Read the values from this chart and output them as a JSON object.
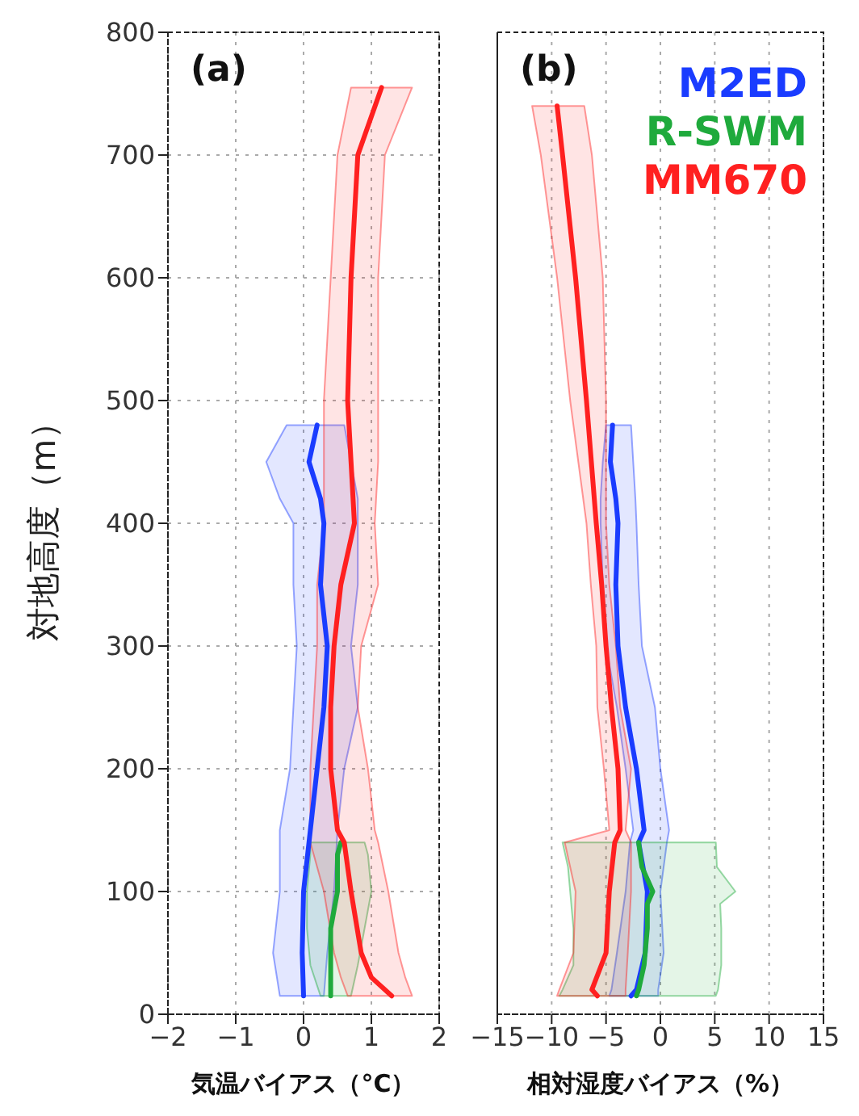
{
  "chart_data": [
    {
      "type": "line",
      "orientation": "horizontal",
      "annotations": [
        "(a)"
      ],
      "xlabel": "気温バイアス（°C）",
      "ylabel": "対地高度（m）",
      "xlim": [
        -2,
        2
      ],
      "xticks": [
        -2,
        -1,
        0,
        1,
        2
      ],
      "ylim": [
        0,
        800
      ],
      "yticks": [
        0,
        100,
        200,
        300,
        400,
        500,
        600,
        700,
        800
      ],
      "grid": true,
      "series": [
        {
          "color": "#1a3cff",
          "x": [
            15,
            50,
            100,
            150,
            200,
            250,
            300,
            350,
            400,
            420,
            450,
            480
          ],
          "values": [
            0,
            -0.02,
            0,
            0.1,
            0.2,
            0.3,
            0.35,
            0.25,
            0.3,
            0.25,
            0.08,
            0.2
          ],
          "lower": [
            -0.35,
            -0.45,
            -0.35,
            -0.35,
            -0.2,
            -0.15,
            -0.1,
            -0.15,
            -0.15,
            -0.35,
            -0.55,
            -0.25
          ],
          "upper": [
            0.3,
            0.35,
            0.45,
            0.5,
            0.6,
            0.8,
            0.7,
            0.8,
            0.8,
            0.8,
            0.7,
            0.6
          ]
        },
        {
          "color": "#1faa3c",
          "x": [
            15,
            40,
            70,
            100,
            130,
            140
          ],
          "values": [
            0.4,
            0.4,
            0.4,
            0.5,
            0.5,
            0.55
          ],
          "lower": [
            0.25,
            0.1,
            0.05,
            0.05,
            0.1,
            0.1
          ],
          "upper": [
            0.7,
            0.8,
            0.9,
            1.0,
            0.95,
            0.9
          ]
        },
        {
          "color": "#ff2020",
          "x": [
            15,
            30,
            50,
            100,
            140,
            150,
            200,
            250,
            300,
            350,
            400,
            450,
            500,
            600,
            700,
            755
          ],
          "values": [
            1.3,
            1.0,
            0.85,
            0.7,
            0.6,
            0.5,
            0.4,
            0.4,
            0.45,
            0.55,
            0.75,
            0.7,
            0.65,
            0.7,
            0.8,
            1.15
          ],
          "lower": [
            0.65,
            0.55,
            0.45,
            0.3,
            0.1,
            0.1,
            0.1,
            0.15,
            0.2,
            0.2,
            0.3,
            0.3,
            0.3,
            0.4,
            0.5,
            0.7
          ],
          "upper": [
            1.6,
            1.5,
            1.4,
            1.25,
            1.1,
            1.05,
            0.95,
            0.8,
            0.85,
            1.1,
            1.05,
            1.1,
            1.1,
            1.1,
            1.2,
            1.6
          ]
        }
      ]
    },
    {
      "type": "line",
      "orientation": "horizontal",
      "annotations": [
        "(b)"
      ],
      "xlabel": "相対湿度バイアス（%）",
      "xlim": [
        -15,
        15
      ],
      "xticks": [
        -15,
        -10,
        -5,
        0,
        5,
        10,
        15
      ],
      "ylim": [
        0,
        800
      ],
      "yticks": [
        0,
        100,
        200,
        300,
        400,
        500,
        600,
        700,
        800
      ],
      "grid": true,
      "tick_labels": "x",
      "legend": "top right",
      "series": [
        {
          "name": "M2ED",
          "color": "#1a3cff",
          "x": [
            15,
            20,
            50,
            100,
            140,
            150,
            200,
            250,
            300,
            350,
            400,
            420,
            450,
            480
          ],
          "values": [
            -2.7,
            -2.2,
            -1.4,
            -1.2,
            -2,
            -1.5,
            -2.2,
            -3.2,
            -3.9,
            -4.1,
            -3.9,
            -4.1,
            -4.6,
            -4.4
          ],
          "lower": [
            -4.7,
            -4.5,
            -4,
            -3.2,
            -2.8,
            -2.5,
            -3.2,
            -4,
            -5,
            -5.3,
            -5.5,
            -5.5,
            -5.3,
            -5
          ],
          "upper": [
            -0.2,
            -0.2,
            0.3,
            0,
            0.6,
            0.8,
            0,
            -0.5,
            -1.7,
            -2,
            -2.2,
            -2.3,
            -2.5,
            -2.7
          ]
        },
        {
          "name": "R-SWM",
          "color": "#1faa3c",
          "x": [
            15,
            20,
            40,
            70,
            90,
            100,
            120,
            140
          ],
          "values": [
            -2.2,
            -2,
            -1.5,
            -1.2,
            -1.2,
            -0.7,
            -1.7,
            -2
          ],
          "lower": [
            -9.3,
            -9,
            -8,
            -8,
            -8.2,
            -8.3,
            -8.5,
            -9
          ],
          "upper": [
            5.1,
            5.3,
            5.6,
            5.6,
            5.5,
            6.9,
            5.2,
            5.1
          ]
        },
        {
          "name": "MM670",
          "color": "#ff2020",
          "x": [
            15,
            20,
            50,
            100,
            140,
            150,
            200,
            250,
            300,
            350,
            400,
            500,
            600,
            700,
            740
          ],
          "values": [
            -5.8,
            -6.3,
            -5,
            -4.7,
            -4.2,
            -3.7,
            -3.9,
            -4.5,
            -5,
            -5.4,
            -5.9,
            -6.8,
            -7.8,
            -9,
            -9.5
          ],
          "lower": [
            -9.5,
            -9.3,
            -8,
            -7.8,
            -8.8,
            -4.7,
            -5.2,
            -5.8,
            -5.9,
            -6.4,
            -6.8,
            -8.3,
            -9.5,
            -11,
            -11.8
          ],
          "upper": [
            -3.2,
            -3.2,
            -3,
            -2.7,
            -2.7,
            -3.2,
            -2.7,
            -3.7,
            -4.1,
            -4.7,
            -5,
            -5,
            -5.3,
            -6.3,
            -7
          ]
        }
      ]
    }
  ]
}
